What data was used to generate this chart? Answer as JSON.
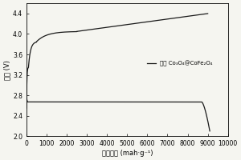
{
  "title": "",
  "ylabel": "电压 (V)",
  "xlabel": "放电容量 (mah·g⁻¹)",
  "xlim": [
    0,
    10000
  ],
  "ylim": [
    2.0,
    4.6
  ],
  "yticks": [
    2.0,
    2.4,
    2.8,
    3.2,
    3.6,
    4.0,
    4.4
  ],
  "xticks": [
    0,
    1000,
    2000,
    3000,
    4000,
    5000,
    6000,
    7000,
    8000,
    9000,
    10000
  ],
  "legend_label": "碳载 Co₃O₄@CoFe₂O₄",
  "line_color": "#1a1a1a",
  "background_color": "#f5f5f0"
}
